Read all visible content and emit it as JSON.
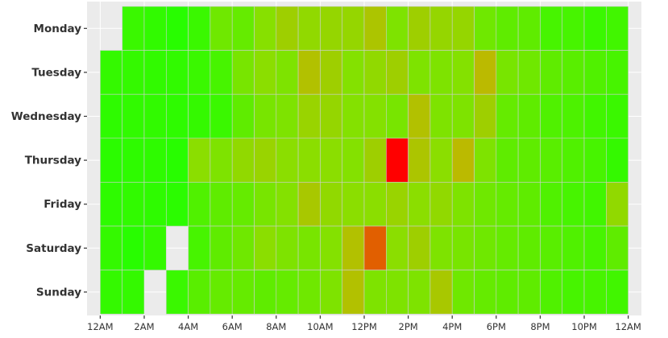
{
  "chart_data": {
    "type": "heatmap",
    "title": "",
    "xlabel": "",
    "ylabel": "",
    "rows": [
      "Monday",
      "Tuesday",
      "Wednesday",
      "Thursday",
      "Friday",
      "Saturday",
      "Sunday"
    ],
    "x_tick_labels": [
      "12AM",
      "2AM",
      "4AM",
      "6AM",
      "8AM",
      "10AM",
      "12PM",
      "2PM",
      "4PM",
      "6PM",
      "8PM",
      "10PM",
      "12AM"
    ],
    "x_tick_hours": [
      0,
      2,
      4,
      6,
      8,
      10,
      12,
      14,
      16,
      18,
      20,
      22,
      24
    ],
    "cell_x_centers": [
      0.5,
      1.5,
      2.5,
      3.5,
      4.5,
      5.5,
      6.5,
      7.5,
      8.5,
      9.5,
      10.5,
      11.5,
      12.5,
      13.5,
      14.5,
      15.5,
      16.5,
      17.5,
      18.5,
      19.5,
      20.5,
      21.5,
      22.5,
      23.5
    ],
    "xlim": [
      -0.6,
      24.6
    ],
    "value_range": [
      0,
      1
    ],
    "color_scale": [
      "#22ff00",
      "#88e000",
      "#c8b000",
      "#ff0000"
    ],
    "plot_background": "#ebebeb",
    "grid_color": "#ffffff",
    "values": [
      [
        null,
        0.08,
        0.05,
        0.02,
        0.08,
        0.25,
        0.22,
        0.33,
        0.45,
        0.38,
        0.4,
        0.4,
        0.52,
        0.3,
        0.45,
        0.4,
        0.4,
        0.25,
        0.2,
        0.2,
        0.12,
        0.12,
        0.08,
        0.1
      ],
      [
        0.06,
        0.06,
        0.05,
        0.05,
        0.08,
        0.12,
        0.28,
        0.35,
        0.3,
        0.55,
        0.45,
        0.32,
        0.38,
        0.45,
        0.3,
        0.3,
        0.32,
        0.6,
        0.28,
        0.25,
        0.2,
        0.18,
        0.15,
        0.12
      ],
      [
        0.04,
        0.05,
        0.05,
        0.04,
        0.06,
        0.08,
        0.2,
        0.28,
        0.3,
        0.42,
        0.4,
        0.32,
        0.32,
        0.28,
        0.55,
        0.3,
        0.3,
        0.45,
        0.22,
        0.2,
        0.15,
        0.14,
        0.1,
        0.08
      ],
      [
        0.03,
        0.04,
        0.04,
        0.02,
        0.35,
        0.3,
        0.38,
        0.42,
        0.35,
        0.35,
        0.35,
        0.32,
        0.45,
        1.0,
        0.52,
        0.35,
        0.6,
        0.3,
        0.2,
        0.2,
        0.18,
        0.15,
        0.12,
        0.06
      ],
      [
        0.04,
        0.05,
        0.04,
        0.03,
        0.15,
        0.2,
        0.22,
        0.28,
        0.32,
        0.5,
        0.38,
        0.35,
        0.35,
        0.42,
        0.35,
        0.38,
        0.3,
        0.25,
        0.22,
        0.2,
        0.15,
        0.12,
        0.1,
        0.38
      ],
      [
        0.06,
        0.02,
        0.06,
        null,
        0.12,
        0.2,
        0.25,
        0.35,
        0.3,
        0.28,
        0.32,
        0.55,
        0.82,
        0.35,
        0.45,
        0.3,
        0.28,
        0.25,
        0.22,
        0.2,
        0.18,
        0.15,
        0.12,
        0.2
      ],
      [
        0.06,
        0.06,
        null,
        0.08,
        0.18,
        0.22,
        0.22,
        0.2,
        0.22,
        0.25,
        0.3,
        0.55,
        0.3,
        0.3,
        0.3,
        0.5,
        0.25,
        0.22,
        0.2,
        0.2,
        0.15,
        0.12,
        0.12,
        0.1
      ]
    ]
  }
}
